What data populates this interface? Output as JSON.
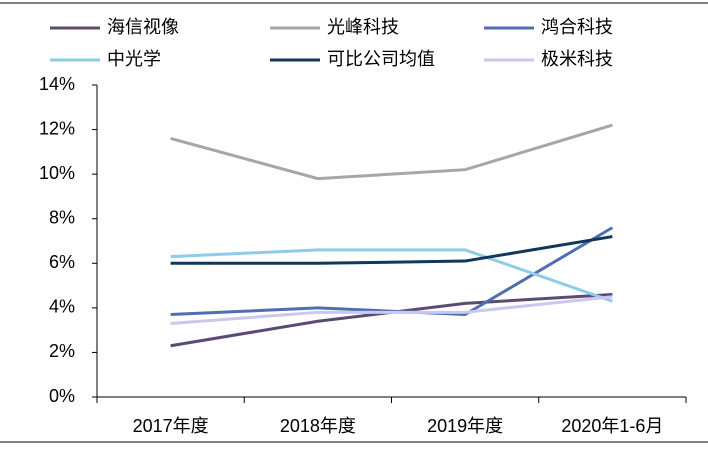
{
  "chart_data": {
    "type": "line",
    "categories": [
      "2017年度",
      "2018年度",
      "2019年度",
      "2020年1-6月"
    ],
    "series": [
      {
        "name": "海信视像",
        "color": "#5b4a72",
        "values": [
          2.3,
          3.4,
          4.2,
          4.6
        ]
      },
      {
        "name": "光峰科技",
        "color": "#a6a6a6",
        "values": [
          11.6,
          9.8,
          10.2,
          12.2
        ]
      },
      {
        "name": "鸿合科技",
        "color": "#4f6fb0",
        "values": [
          3.7,
          4.0,
          3.7,
          7.6
        ]
      },
      {
        "name": "中光学",
        "color": "#8ecde8",
        "values": [
          6.3,
          6.6,
          6.6,
          4.3
        ]
      },
      {
        "name": "可比公司均值",
        "color": "#12375c",
        "values": [
          6.0,
          6.0,
          6.1,
          7.2
        ]
      },
      {
        "name": "极米科技",
        "color": "#c9c8ee",
        "values": [
          3.3,
          3.8,
          3.8,
          4.5
        ]
      }
    ],
    "ylim": [
      0,
      14
    ],
    "yticks": [
      {
        "value": 0,
        "label": "0%"
      },
      {
        "value": 2,
        "label": "2%"
      },
      {
        "value": 4,
        "label": "4%"
      },
      {
        "value": 6,
        "label": "6%"
      },
      {
        "value": 8,
        "label": "8%"
      },
      {
        "value": 10,
        "label": "10%"
      },
      {
        "value": 12,
        "label": "12%"
      },
      {
        "value": 14,
        "label": "14%"
      }
    ],
    "legend": "top"
  }
}
